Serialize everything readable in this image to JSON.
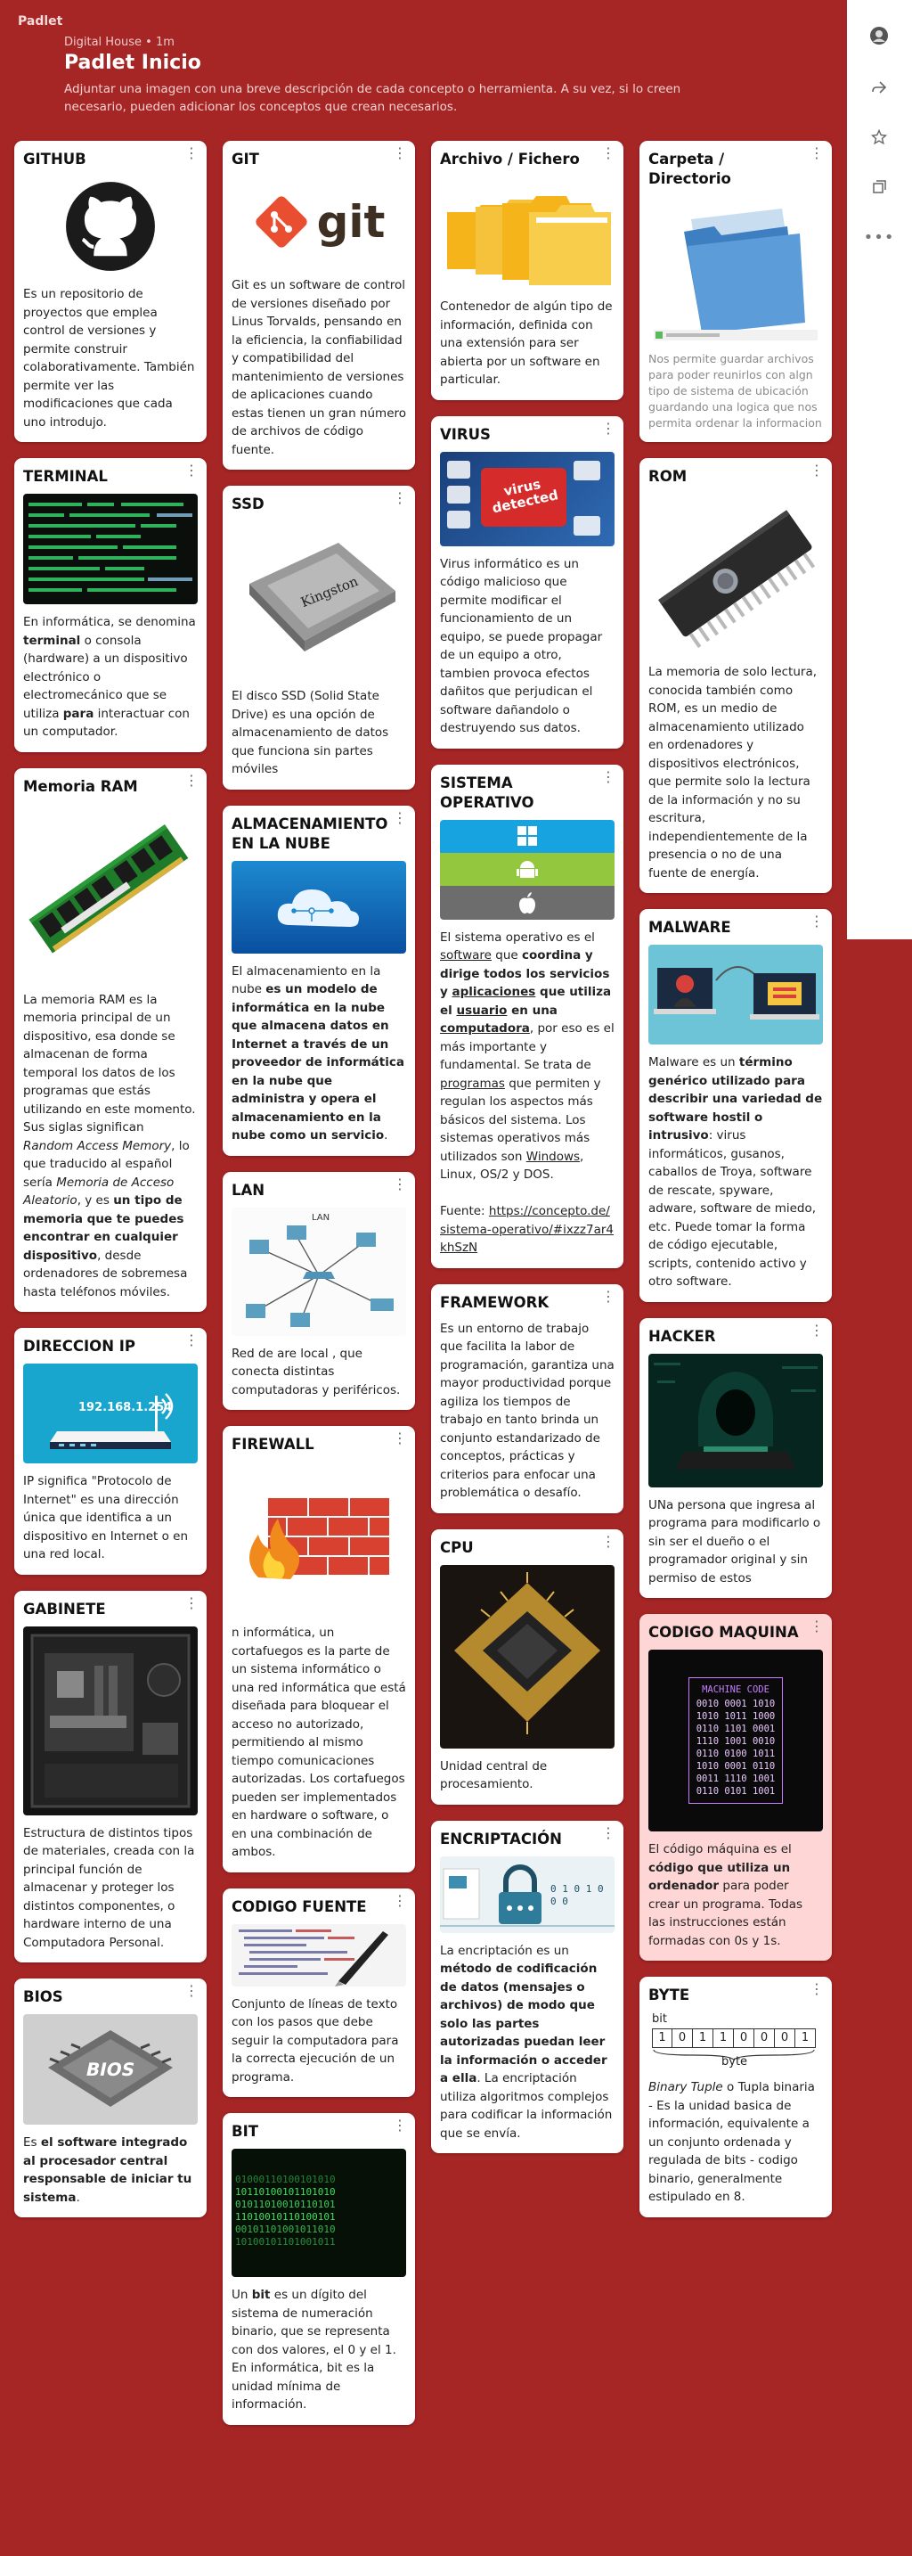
{
  "header": {
    "logo": "Padlet",
    "meta": "Digital House • 1m",
    "title": "Padlet Inicio",
    "description": "Adjuntar una imagen con una breve descripción de cada concepto o herramienta. A su vez, si lo creen necesario, pueden adicionar los conceptos que crean necesarios."
  },
  "cards": {
    "github": {
      "title": "GITHUB",
      "body": "Es un repositorio de proyectos que emplea control de versiones y permite construir colaborativamente. También permite ver las modificaciones que cada uno introdujo."
    },
    "terminal": {
      "title": "TERMINAL",
      "t1": "En informática, se denomina ",
      "t2": "terminal",
      "t3": " o consola (hardware) a un dispositivo electrónico o electromecánico que se utiliza ",
      "t4": "para",
      "t5": " interactuar con un computador."
    },
    "ram": {
      "title": "Memoria RAM",
      "t1": "La memoria RAM es la memoria principal de un dispositivo, esa donde se almacenan de forma temporal los datos de los programas que estás utilizando en este momento. Sus siglas significan ",
      "t2": "Random Access Memory",
      "t3": ", lo que traducido al español sería ",
      "t4": "Memoria de Acceso Aleatorio",
      "t5": ", y es ",
      "t6": "un tipo de memoria que te puedes encontrar en cualquier dispositivo",
      "t7": ", desde ordenadores de sobremesa hasta teléfonos móviles."
    },
    "ip": {
      "title": "DIRECCION IP",
      "img_text": "192.168.1.254",
      "body": "IP significa \"Protocolo de Internet\" es una dirección única que identifica a un dispositivo en Internet o en una red local."
    },
    "gabinete": {
      "title": "GABINETE",
      "body": "Estructura de distintos tipos de materiales, creada con la principal función de almacenar y proteger los distintos componentes, o hardware interno de una Computadora Personal."
    },
    "bios": {
      "title": "BIOS",
      "img_text": "BIOS",
      "t1": "Es ",
      "t2": "el software integrado al procesador central responsable de iniciar tu sistema",
      "t3": "."
    },
    "git": {
      "title": "GIT",
      "img_text": "git",
      "body": "Git es un software de control de versiones diseñado por Linus Torvalds, pensando en la eficiencia, la confiabilidad y compatibilidad del mantenimiento de versiones de aplicaciones cuando estas tienen un gran número de archivos de código fuente."
    },
    "ssd": {
      "title": "SSD",
      "img_text": "Kingston",
      "body": "El disco SSD (Solid State Drive) es una opción de almacenamiento de datos que funciona sin partes móviles"
    },
    "nube": {
      "title": "ALMACENAMIENTO EN LA NUBE",
      "t1": "El almacenamiento en la nube ",
      "t2": "es un modelo de informática en la nube que almacena datos en Internet a través de un proveedor de informática en la nube que administra y opera el almacenamiento en la nube como un servicio",
      "t3": "."
    },
    "lan": {
      "title": "LAN",
      "img_text": "LAN",
      "body": "Red de are local , que conecta distintas computadoras y periféricos."
    },
    "firewall": {
      "title": "FIREWALL",
      "body": "n informática, un cortafuegos es la parte de un sistema informático o una red informática que está diseñada para bloquear el acceso no autorizado, permitiendo al mismo tiempo comunicaciones autorizadas. Los cortafuegos pueden ser implementados en hardware o software, o en una combinación de ambos."
    },
    "codigo": {
      "title": "CODIGO FUENTE",
      "body": "Conjunto de líneas de texto con los pasos que debe seguir la computadora para la correcta ejecución de un programa."
    },
    "bit": {
      "title": "BIT",
      "t1": "Un ",
      "t2": "bit",
      "t3": " es un dígito del sistema de numeración binario, que se representa con dos valores, el 0 y el 1. En informática, bit es la unidad mínima de información."
    },
    "archivo": {
      "title": "Archivo / Fichero",
      "body": "Contenedor de algún tipo de información, definida con una extensión para ser abierta por un software en particular."
    },
    "virus": {
      "title": "VIRUS",
      "img_text": "virus detected",
      "body": "Virus informático es un código malicioso que permite modificar el funcionamiento de un equipo, se puede propagar de un equipo a otro, tambien provoca efectos dañitos que perjudican el software dañandolo o destruyendo sus datos."
    },
    "so": {
      "title": "SISTEMA OPERATIVO",
      "t1": "El sistema operativo es el ",
      "t2": "software",
      "t3": " que ",
      "t4": "coordina y dirige todos los servicios y ",
      "t5": "aplicaciones",
      "t6": " que utiliza el ",
      "t7": "usuario",
      "t8": " en una ",
      "t9": "computadora",
      "t10": ", por eso es el más importante y fundamental. Se trata de ",
      "t11": "programas",
      "t12": " que permiten y regulan los aspectos más básicos del sistema. Los sistemas operativos más utilizados son ",
      "t13": "Windows",
      "t14": ", Linux, OS/2 y DOS.",
      "t15": "Fuente: ",
      "t16": "https://concepto.de/sistema-operativo/#ixzz7ar4khSzN"
    },
    "framework": {
      "title": "FRAMEWORK",
      "body": "Es un entorno de trabajo que facilita la labor de programación, garantiza una mayor productividad porque agiliza los tiempos de trabajo en tanto brinda un conjunto estandarizado de conceptos, prácticas y criterios para enfocar una problemática o desafío."
    },
    "cpu": {
      "title": "CPU",
      "body": "Unidad central de procesamiento."
    },
    "encriptacion": {
      "title": "ENCRIPTACIÓN",
      "img_text": "0 1 0 1 0 0 0",
      "t1": "La encriptación es un ",
      "t2": "método de codificación de datos (mensajes o archivos) de modo que solo las partes autorizadas puedan leer la información o acceder a ella",
      "t3": ". La encriptación utiliza algoritmos complejos para codificar la información que se envía."
    },
    "carpeta": {
      "title": "Carpeta / Directorio",
      "body": "Nos permite guardar archivos para poder reunirlos con algn tipo de sistema de ubicación guardando una logica que nos permita ordenar la informacion"
    },
    "rom": {
      "title": "ROM",
      "body": "La memoria de solo lectura, conocida también como ROM, es un medio de almacenamiento utilizado en ordenadores y dispositivos electrónicos, que permite solo la lectura de la información y no su escritura,  independientemente de la presencia o no de una fuente de energía."
    },
    "malware": {
      "title": "MALWARE",
      "t1": "Malware es un ",
      "t2": "término genérico utilizado para describir una variedad de software hostil o intrusivo",
      "t3": ": virus informáticos, gusanos, caballos de Troya, software de rescate, spyware, adware, software de miedo, etc. Puede tomar la forma de código ejecutable, scripts, contenido activo y otro software."
    },
    "hacker": {
      "title": "HACKER",
      "body": "UNa persona que ingresa al programa para modificarlo o sin ser el dueño o el programador original y sin permiso de estos"
    },
    "maquina": {
      "title": "CODIGO MAQUINA",
      "img_title": "MACHINE CODE",
      "img_lines": [
        "0010 0001 1010",
        "1010 1011 1000",
        "0110 1101 0001",
        "1110 1001 0010",
        "0110 0100 1011",
        "1010 0001 0110",
        "0011 1110 1001",
        "0110 0101 1001"
      ],
      "t1": "El código máquina es el ",
      "t2": "código que utiliza un ordenador",
      "t3": " para poder crear un programa. Todas las instrucciones están formadas con 0s y 1s."
    },
    "byte": {
      "title": "BYTE",
      "img_bit": "bit",
      "img_byte": "byte",
      "bits": [
        "1",
        "0",
        "1",
        "1",
        "0",
        "0",
        "0",
        "1"
      ],
      "t1": "Binary Tuple",
      "t2": " o Tupla binaria - Es la unidad basica de información, equivalente a un conjunto ordenada y regulada de bits - codigo binario, generalmente estipulado en 8."
    }
  },
  "colors": {
    "background": "#a62525",
    "card": "#ffffff",
    "highlight_card": "#ffd6d6"
  }
}
